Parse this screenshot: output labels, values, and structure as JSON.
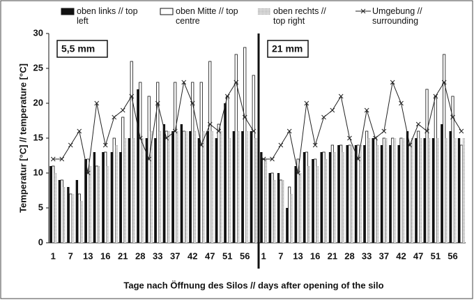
{
  "chart_data": {
    "type": "bar",
    "ylabel": "Temperatur [°C] // temperature [°C]",
    "xlabel": "Tage nach Öffnung des Silos // days after opening of the silo",
    "ylim": [
      0,
      30
    ],
    "yticks": [
      0,
      5,
      10,
      15,
      20,
      25,
      30
    ],
    "categories": [
      "1",
      null,
      "7",
      null,
      "13",
      null,
      "16",
      null,
      "21",
      null,
      "28",
      null,
      "33",
      null,
      "37",
      null,
      "42",
      null,
      "47",
      null,
      "51",
      null,
      "56",
      null
    ],
    "series": [
      {
        "name": "oben links // top left",
        "type": "bar",
        "color": "#111111"
      },
      {
        "name": "oben Mitte // top centre",
        "type": "bar",
        "color": "#ffffff"
      },
      {
        "name": "oben rechts // top right",
        "type": "bar",
        "color": "#c8c8c8"
      },
      {
        "name": "Umgebung // surrounding",
        "type": "line",
        "color": "#222222"
      }
    ],
    "panels": [
      {
        "label": "5,5 mm",
        "values": [
          [
            11,
            9,
            8,
            9,
            12,
            13,
            13,
            13,
            13,
            15,
            22,
            15,
            15,
            17,
            16,
            17,
            16,
            15,
            16,
            15,
            20,
            16,
            16,
            16
          ],
          [
            11,
            9,
            7,
            7,
            12,
            11,
            13,
            15,
            18,
            26,
            23,
            21,
            23,
            16,
            23,
            16,
            23,
            23,
            26,
            17,
            21,
            27,
            28,
            24
          ],
          [
            10,
            8,
            7,
            6,
            11,
            11,
            11,
            14,
            15,
            15,
            15,
            16,
            16,
            16,
            16,
            16,
            16,
            16,
            16,
            16,
            15,
            16,
            16,
            15
          ],
          [
            12,
            12,
            14,
            16,
            10,
            20,
            14,
            18,
            19,
            21,
            15,
            12,
            20,
            15,
            16,
            23,
            20,
            14,
            17,
            16,
            21,
            23,
            18,
            16
          ]
        ]
      },
      {
        "label": "21 mm",
        "values": [
          [
            13,
            10,
            10,
            5,
            11,
            13,
            12,
            13,
            13,
            14,
            14,
            14,
            14,
            15,
            14,
            14,
            14,
            16,
            15,
            15,
            15,
            17,
            16,
            15
          ],
          [
            12,
            10,
            9,
            8,
            12,
            13,
            12,
            13,
            14,
            14,
            14,
            14,
            16,
            15,
            15,
            15,
            15,
            14,
            16,
            22,
            21,
            27,
            21,
            14
          ],
          [
            12,
            9,
            9,
            7,
            10,
            11,
            11,
            12,
            13,
            13,
            14,
            14,
            15,
            14,
            15,
            15,
            15,
            15,
            15,
            15,
            15,
            15,
            15,
            15
          ],
          [
            12,
            12,
            14,
            16,
            10,
            20,
            14,
            18,
            19,
            21,
            15,
            12,
            19,
            15,
            16,
            23,
            20,
            14,
            17,
            16,
            21,
            23,
            18,
            16
          ]
        ]
      }
    ]
  }
}
